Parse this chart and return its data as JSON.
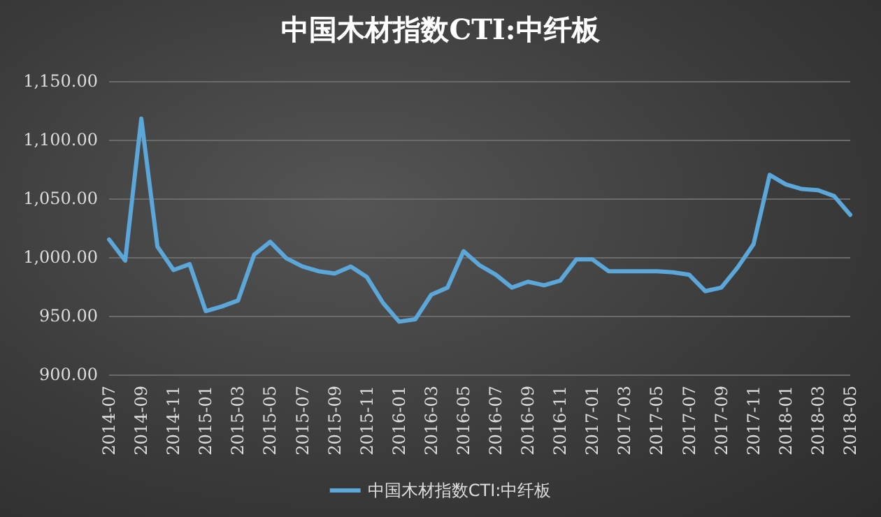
{
  "chart_data": {
    "type": "line",
    "title": "中国木材指数CTI:中纤板",
    "categories": [
      "2014-07",
      null,
      "2014-09",
      null,
      "2014-11",
      null,
      "2015-01",
      null,
      "2015-03",
      null,
      "2015-05",
      null,
      "2015-07",
      null,
      "2015-09",
      null,
      "2015-11",
      null,
      "2016-01",
      null,
      "2016-03",
      null,
      "2016-05",
      null,
      "2016-07",
      null,
      "2016-09",
      null,
      "2016-11",
      null,
      "2017-01",
      null,
      "2017-03",
      null,
      "2017-05",
      null,
      "2017-07",
      null,
      "2017-09",
      null,
      "2017-11",
      null,
      "2018-01",
      null,
      "2018-03",
      null,
      "2018-05"
    ],
    "series": [
      {
        "name": "中国木材指数CTI:中纤板",
        "color": "#5ba7d9",
        "values": [
          1015,
          997,
          1118,
          1009,
          989,
          994,
          954,
          958,
          963,
          1002,
          1013,
          999,
          992,
          988,
          986,
          992,
          983,
          961,
          945,
          947,
          968,
          974,
          1005,
          993,
          985,
          974,
          979,
          976,
          980,
          998,
          998,
          988,
          988,
          988,
          988,
          987,
          985,
          971,
          974,
          991,
          1011,
          1070,
          1062,
          1058,
          1057,
          1052,
          1036
        ]
      }
    ],
    "ylim": [
      900,
      1150
    ],
    "yticks": [
      {
        "value": 900,
        "label": "900.00"
      },
      {
        "value": 950,
        "label": "950.00"
      },
      {
        "value": 1000,
        "label": "1,000.00"
      },
      {
        "value": 1050,
        "label": "1,050.00"
      },
      {
        "value": 1100,
        "label": "1,100.00"
      },
      {
        "value": 1150,
        "label": "1,150.00"
      }
    ],
    "grid": "y",
    "legend": "bottom",
    "marker": "none",
    "line_style": "solid"
  }
}
